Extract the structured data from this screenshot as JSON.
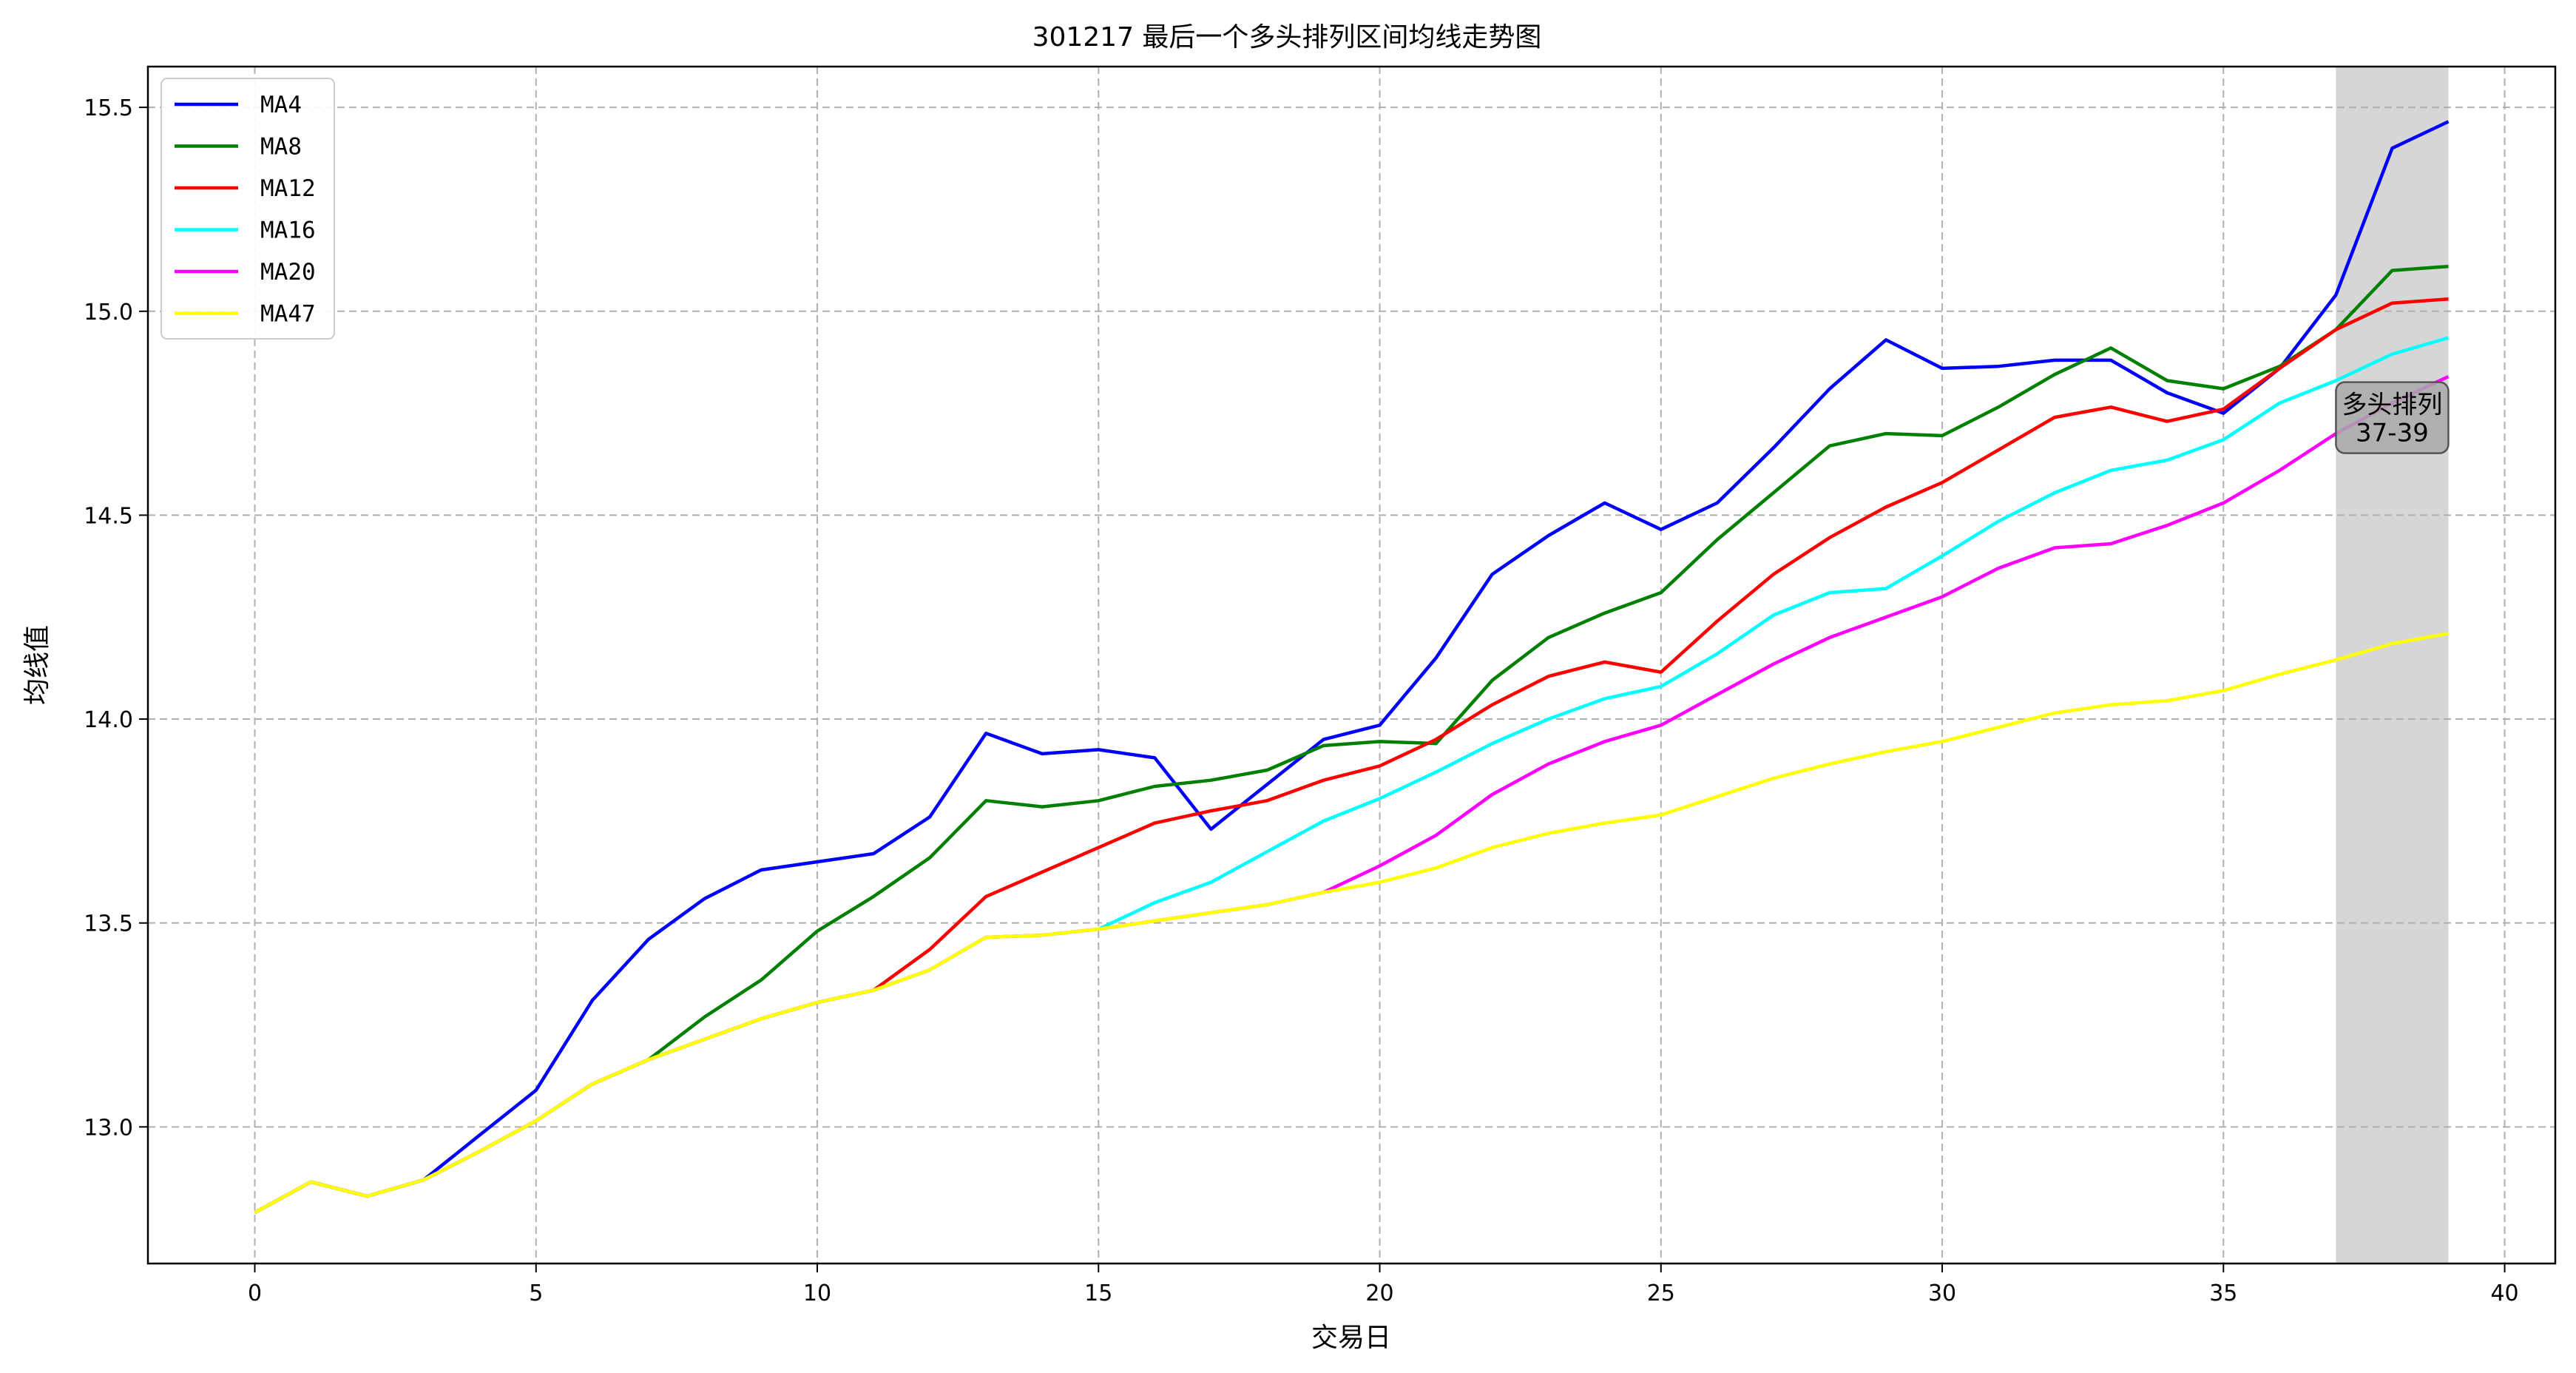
{
  "chart_data": {
    "type": "line",
    "title": "301217 最后一个多头排列区间均线走势图",
    "xlabel": "交易日",
    "ylabel": "均线值",
    "xlim": [
      -1.9,
      40.9
    ],
    "ylim": [
      12.665,
      15.6
    ],
    "x_ticks": [
      0,
      5,
      10,
      15,
      20,
      25,
      30,
      35,
      40
    ],
    "y_ticks": [
      13.0,
      13.5,
      14.0,
      14.5,
      15.0,
      15.5
    ],
    "x_tick_labels": [
      "0",
      "5",
      "10",
      "15",
      "20",
      "25",
      "30",
      "35",
      "40"
    ],
    "y_tick_labels": [
      "13.0",
      "13.5",
      "14.0",
      "14.5",
      "15.0",
      "15.5"
    ],
    "grid": true,
    "legend_position": "top-left",
    "highlight": {
      "x_start": 37,
      "x_end": 39,
      "color": "#d6d6d6",
      "label_line1": "多头排列",
      "label_line2": "37-39",
      "label_x": 38,
      "label_y": 14.75
    },
    "x": [
      0,
      1,
      2,
      3,
      4,
      5,
      6,
      7,
      8,
      9,
      10,
      11,
      12,
      13,
      14,
      15,
      16,
      17,
      18,
      19,
      20,
      21,
      22,
      23,
      24,
      25,
      26,
      27,
      28,
      29,
      30,
      31,
      32,
      33,
      34,
      35,
      36,
      37,
      38,
      39
    ],
    "series": [
      {
        "name": "MA4",
        "color": "#0000ff",
        "values": [
          12.79,
          12.865,
          12.83,
          12.87,
          12.98,
          13.09,
          13.31,
          13.46,
          13.56,
          13.63,
          13.65,
          13.67,
          13.76,
          13.965,
          13.915,
          13.925,
          13.905,
          13.73,
          13.84,
          13.95,
          13.985,
          14.15,
          14.355,
          14.45,
          14.53,
          14.465,
          14.53,
          14.665,
          14.81,
          14.93,
          14.86,
          14.865,
          14.88,
          14.88,
          14.8,
          14.75,
          14.86,
          15.04,
          15.4,
          15.465
        ]
      },
      {
        "name": "MA8",
        "color": "#008000",
        "values": [
          12.79,
          12.865,
          12.83,
          12.87,
          12.94,
          13.015,
          13.105,
          13.165,
          13.27,
          13.36,
          13.48,
          13.565,
          13.66,
          13.8,
          13.785,
          13.8,
          13.835,
          13.85,
          13.875,
          13.935,
          13.945,
          13.94,
          14.095,
          14.2,
          14.26,
          14.31,
          14.44,
          14.555,
          14.67,
          14.7,
          14.695,
          14.765,
          14.845,
          14.91,
          14.83,
          14.81,
          14.865,
          14.955,
          15.1,
          15.11
        ]
      },
      {
        "name": "MA12",
        "color": "#ff0000",
        "values": [
          12.79,
          12.865,
          12.83,
          12.87,
          12.94,
          13.015,
          13.105,
          13.165,
          13.215,
          13.265,
          13.305,
          13.335,
          13.435,
          13.565,
          13.625,
          13.685,
          13.745,
          13.775,
          13.8,
          13.85,
          13.885,
          13.95,
          14.035,
          14.105,
          14.14,
          14.115,
          14.24,
          14.355,
          14.445,
          14.52,
          14.58,
          14.66,
          14.74,
          14.765,
          14.73,
          14.76,
          14.86,
          14.955,
          15.02,
          15.03
        ]
      },
      {
        "name": "MA16",
        "color": "#00ffff",
        "values": [
          12.79,
          12.865,
          12.83,
          12.87,
          12.94,
          13.015,
          13.105,
          13.165,
          13.215,
          13.265,
          13.305,
          13.335,
          13.385,
          13.465,
          13.47,
          13.485,
          13.55,
          13.6,
          13.675,
          13.75,
          13.805,
          13.87,
          13.94,
          14.0,
          14.05,
          14.08,
          14.16,
          14.255,
          14.31,
          14.32,
          14.4,
          14.485,
          14.555,
          14.61,
          14.635,
          14.685,
          14.775,
          14.83,
          14.895,
          14.935
        ]
      },
      {
        "name": "MA20",
        "color": "#ff00ff",
        "values": [
          12.79,
          12.865,
          12.83,
          12.87,
          12.94,
          13.015,
          13.105,
          13.165,
          13.215,
          13.265,
          13.305,
          13.335,
          13.385,
          13.465,
          13.47,
          13.485,
          13.505,
          13.525,
          13.545,
          13.575,
          13.64,
          13.715,
          13.815,
          13.89,
          13.945,
          13.985,
          14.06,
          14.135,
          14.2,
          14.25,
          14.3,
          14.37,
          14.42,
          14.43,
          14.475,
          14.53,
          14.61,
          14.7,
          14.775,
          14.84
        ]
      },
      {
        "name": "MA47",
        "color": "#ffff00",
        "values": [
          12.79,
          12.865,
          12.83,
          12.87,
          12.94,
          13.015,
          13.105,
          13.165,
          13.215,
          13.265,
          13.305,
          13.335,
          13.385,
          13.465,
          13.47,
          13.485,
          13.505,
          13.525,
          13.545,
          13.575,
          13.6,
          13.635,
          13.685,
          13.72,
          13.745,
          13.765,
          13.81,
          13.855,
          13.89,
          13.92,
          13.945,
          13.98,
          14.015,
          14.035,
          14.045,
          14.07,
          14.11,
          14.145,
          14.185,
          14.21
        ]
      }
    ]
  }
}
